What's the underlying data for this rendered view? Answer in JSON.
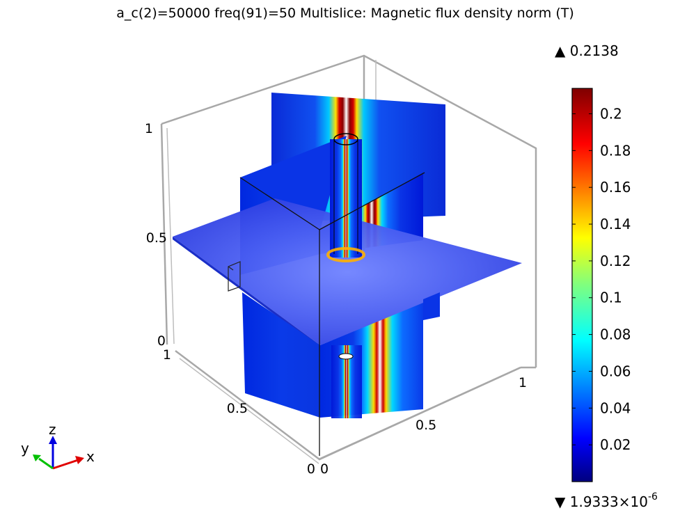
{
  "title": "a_c(2)=50000 freq(91)=50   Multislice: Magnetic flux density norm (T)",
  "chart_data": {
    "type": "heatmap",
    "title": "a_c(2)=50000 freq(91)=50   Multislice: Magnetic flux density norm (T)",
    "quantity": "Magnetic flux density norm",
    "unit": "T",
    "colormap": "rainbow",
    "colorbar": {
      "max_label": "▲ 0.2138",
      "min_label_base": "▼ 1.9333×10",
      "min_label_exp": "-6",
      "max": 0.2138,
      "min": 1.9333e-06,
      "ticks": [
        "0.2",
        "0.18",
        "0.16",
        "0.14",
        "0.12",
        "0.1",
        "0.08",
        "0.06",
        "0.04",
        "0.02"
      ],
      "tick_values": [
        0.2,
        0.18,
        0.16,
        0.14,
        0.12,
        0.1,
        0.08,
        0.06,
        0.04,
        0.02
      ]
    },
    "axes": {
      "x_ticks": [
        "0",
        "0.5",
        "1"
      ],
      "y_ticks": [
        "0",
        "0.5",
        "1"
      ],
      "z_ticks": [
        "0",
        "0.5",
        "1"
      ],
      "x_range": [
        0,
        1
      ],
      "y_range": [
        0,
        1
      ],
      "z_range": [
        0,
        1
      ]
    },
    "slices": [
      {
        "normal": "x",
        "position": 0.5
      },
      {
        "normal": "y",
        "position": 0.5
      },
      {
        "normal": "z",
        "position": 0.5
      }
    ],
    "triad": {
      "x": "x",
      "y": "y",
      "z": "z"
    }
  }
}
